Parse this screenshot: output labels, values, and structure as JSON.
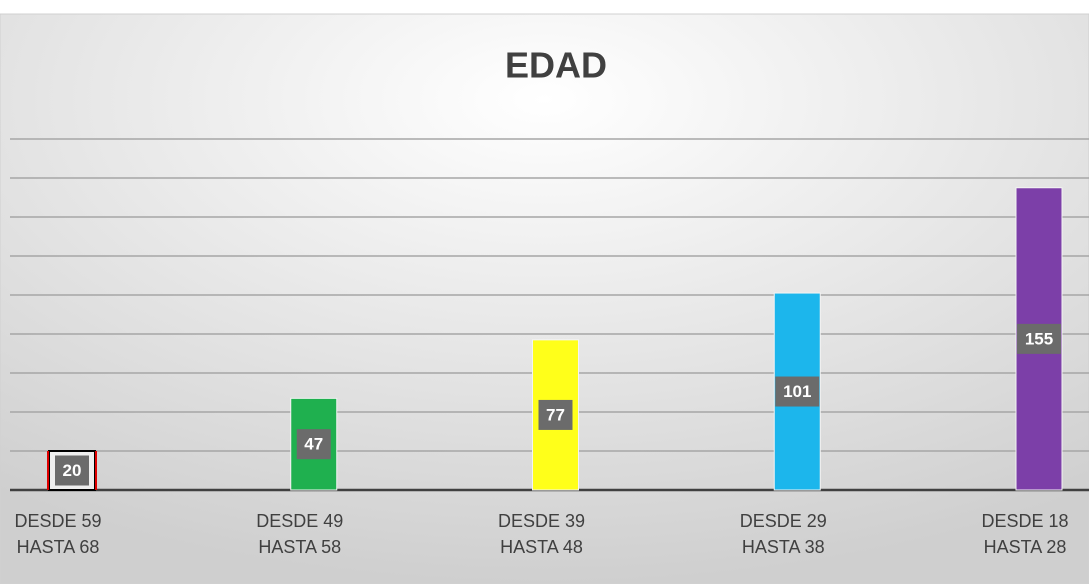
{
  "chart_data": {
    "type": "bar",
    "title": "EDAD",
    "categories": [
      [
        "DESDE 59",
        "HASTA 68"
      ],
      [
        "DESDE 49",
        "HASTA 58"
      ],
      [
        "DESDE 39",
        "HASTA 48"
      ],
      [
        "DESDE 29",
        "HASTA 38"
      ],
      [
        "DESDE 18",
        "HASTA 28"
      ]
    ],
    "values": [
      20,
      47,
      77,
      101,
      155
    ],
    "colors": [
      "#eeeeee",
      "#1fb04f",
      "#ffff1a",
      "#1cb6ec",
      "#7c3fa8"
    ],
    "ylim": [
      0,
      180
    ],
    "yticks": [
      0,
      20,
      40,
      60,
      80,
      100,
      120,
      140,
      160,
      180
    ],
    "grid": true
  }
}
